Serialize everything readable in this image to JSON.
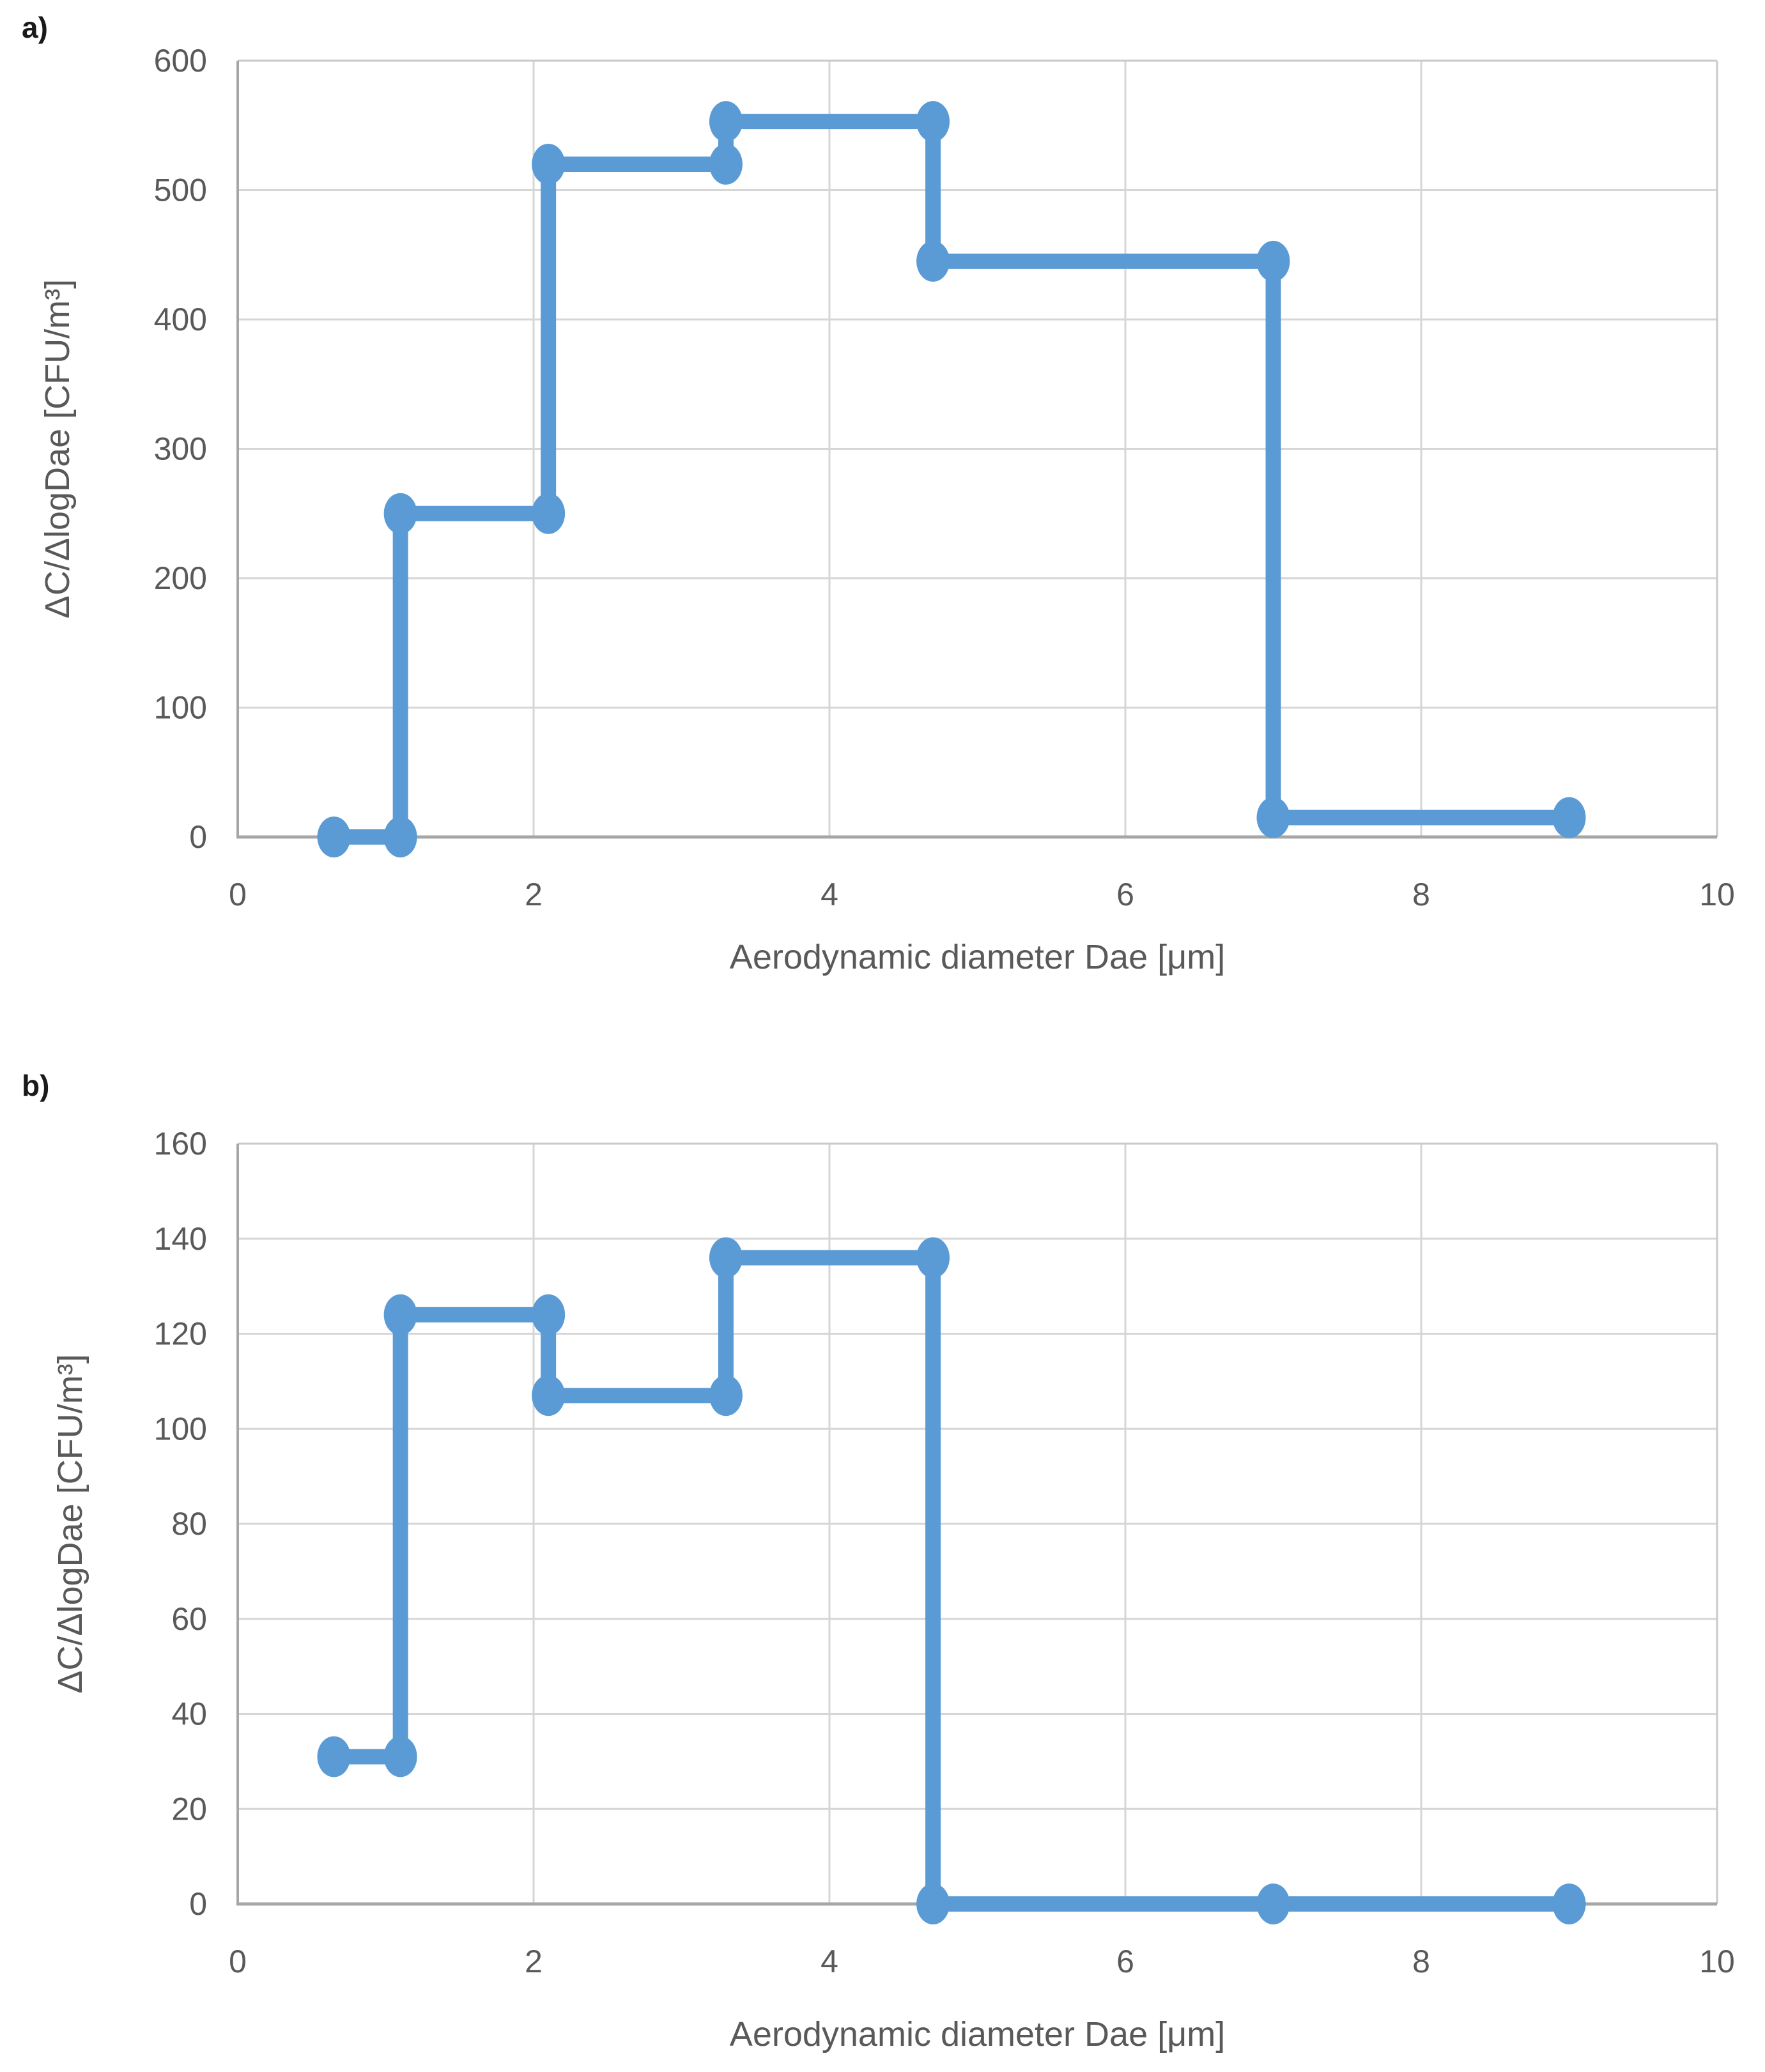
{
  "figure": {
    "panel_a_label": "a)",
    "panel_b_label": "b)"
  },
  "colors": {
    "series": "#5B9BD5",
    "gridline": "#D6D6D6",
    "plot_border": "#C9C9C9",
    "axis_line": "#A6A6A6",
    "axis_text": "#595959"
  },
  "chart_data": [
    {
      "type": "line",
      "subtype": "step",
      "panel": "a",
      "title": "",
      "xlabel": "Aerodynamic diameter Dae [μm]",
      "ylabel": "ΔC/ΔlogDae [CFU/m³]",
      "xlim": [
        0,
        10
      ],
      "ylim": [
        0,
        600
      ],
      "xticks": [
        0,
        2,
        4,
        6,
        8,
        10
      ],
      "yticks": [
        0,
        100,
        200,
        300,
        400,
        500,
        600
      ],
      "grid": true,
      "legend": "none",
      "step_boundaries_um": [
        0.65,
        1.1,
        2.1,
        3.3,
        4.7,
        7.0,
        9.0
      ],
      "step_values_cfu_m3": [
        0,
        250,
        520,
        553,
        445,
        15
      ],
      "vertices": [
        [
          0.65,
          0
        ],
        [
          1.1,
          0
        ],
        [
          1.1,
          250
        ],
        [
          2.1,
          250
        ],
        [
          2.1,
          520
        ],
        [
          3.3,
          520
        ],
        [
          3.3,
          553
        ],
        [
          4.7,
          553
        ],
        [
          4.7,
          445
        ],
        [
          7.0,
          445
        ],
        [
          7.0,
          15
        ],
        [
          9.0,
          15
        ]
      ]
    },
    {
      "type": "line",
      "subtype": "step",
      "panel": "b",
      "title": "",
      "xlabel": "Aerodynamic diameter Dae [μm]",
      "ylabel": "ΔC/ΔlogDae [CFU/m³]",
      "xlim": [
        0,
        10
      ],
      "ylim": [
        0,
        160
      ],
      "xticks": [
        0,
        2,
        4,
        6,
        8,
        10
      ],
      "yticks": [
        0,
        20,
        40,
        60,
        80,
        100,
        120,
        140,
        160
      ],
      "grid": true,
      "legend": "none",
      "step_boundaries_um": [
        0.65,
        1.1,
        2.1,
        3.3,
        4.7,
        7.0,
        9.0
      ],
      "step_values_cfu_m3": [
        31,
        124,
        107,
        136,
        0,
        0
      ],
      "vertices": [
        [
          0.65,
          31
        ],
        [
          1.1,
          31
        ],
        [
          1.1,
          124
        ],
        [
          2.1,
          124
        ],
        [
          2.1,
          107
        ],
        [
          3.3,
          107
        ],
        [
          3.3,
          136
        ],
        [
          4.7,
          136
        ],
        [
          4.7,
          0
        ],
        [
          7.0,
          0
        ],
        [
          9.0,
          0
        ]
      ]
    }
  ]
}
